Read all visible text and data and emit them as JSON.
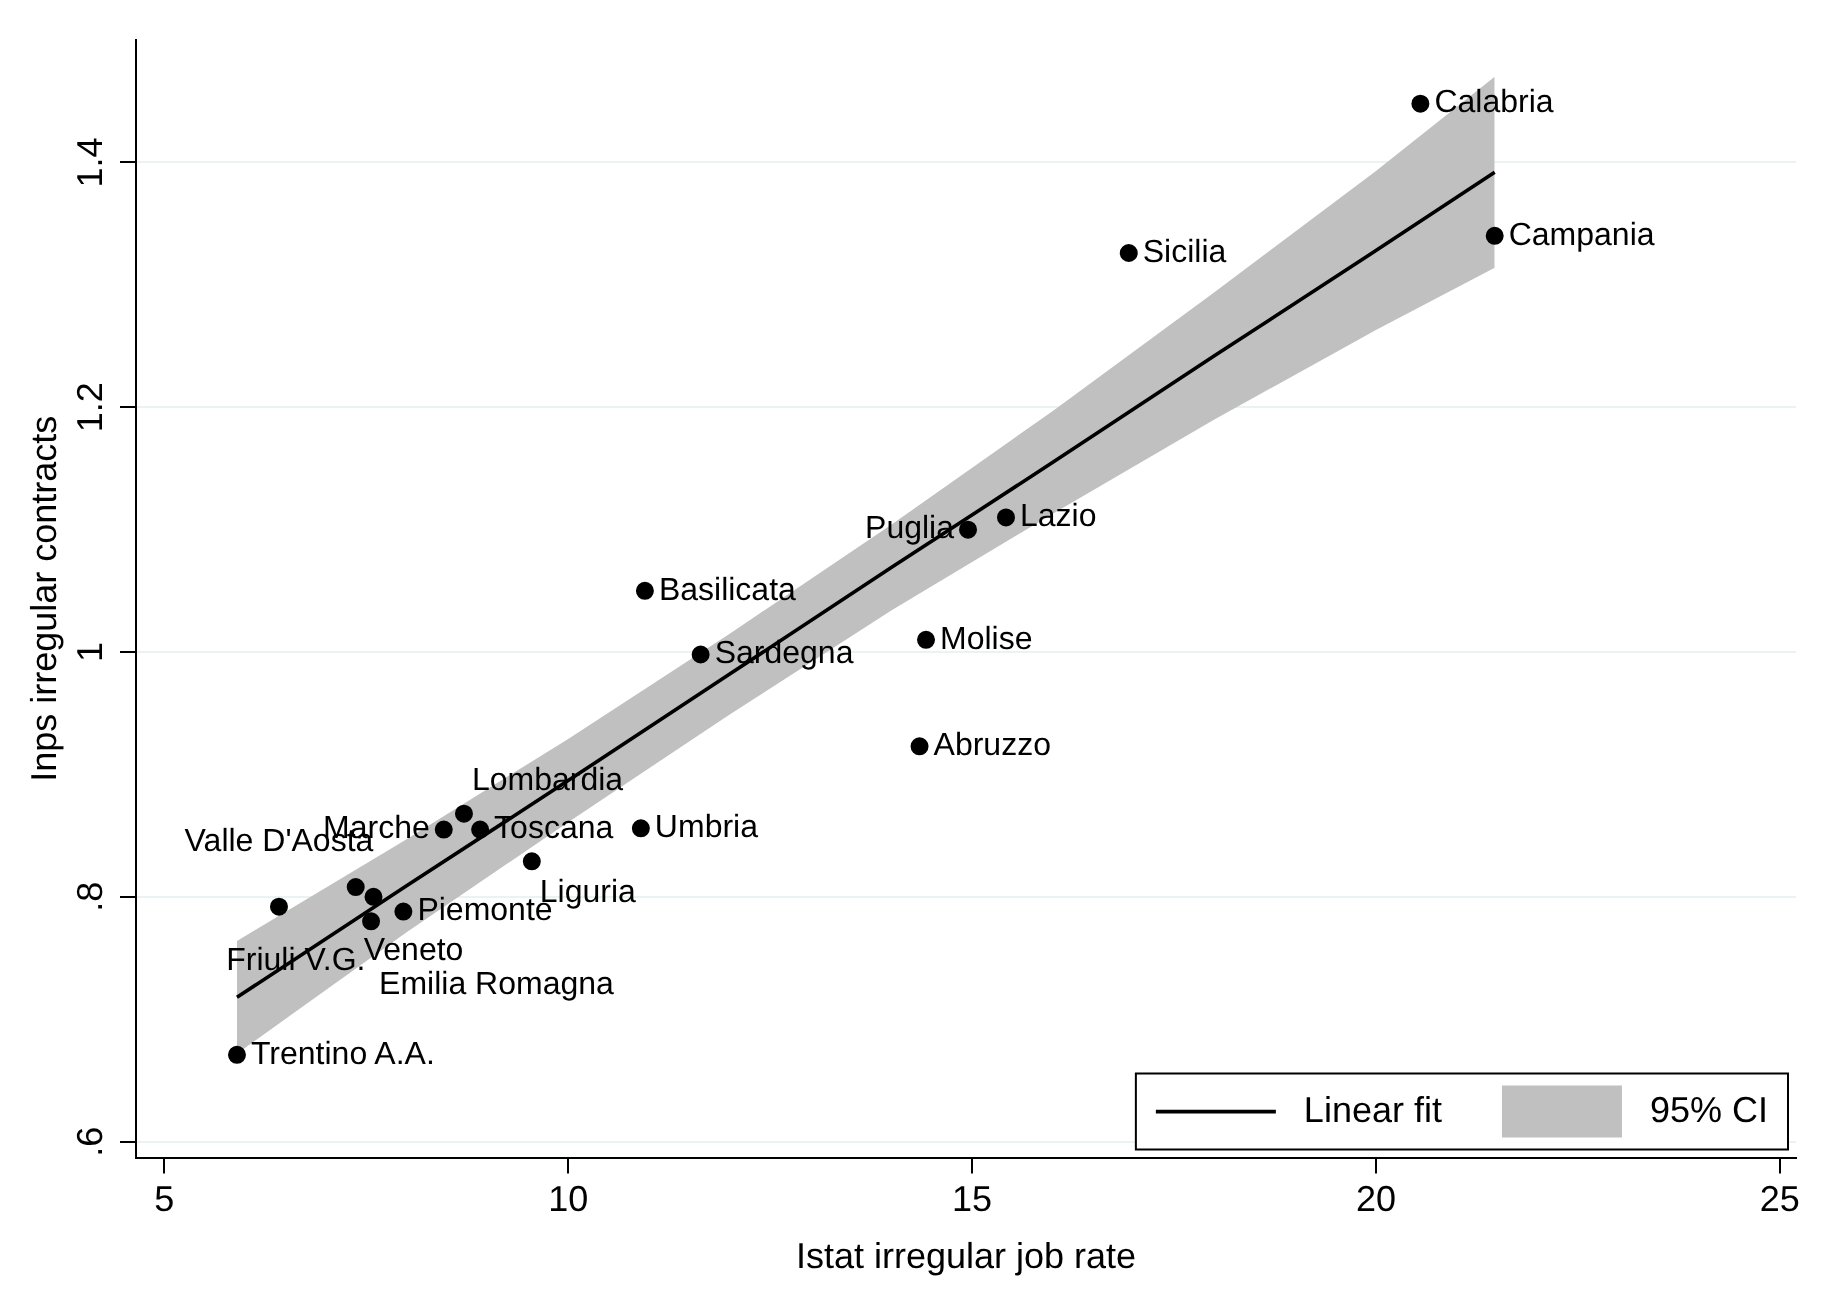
{
  "chart_data": {
    "type": "scatter",
    "xlabel": "Istat irregular job rate",
    "ylabel": "Inps irregular contracts",
    "xlim": [
      4.65,
      25.2
    ],
    "xticks": [
      5,
      10,
      15,
      20,
      25
    ],
    "ylim": [
      0.587,
      1.5
    ],
    "yticks": [
      {
        "value": 0.6,
        "label": ".6"
      },
      {
        "value": 0.8,
        "label": ".8"
      },
      {
        "value": 1,
        "label": "1"
      },
      {
        "value": 1.2,
        "label": "1.2"
      },
      {
        "value": 1.4,
        "label": "1.4"
      }
    ],
    "grid": "y",
    "legend": "bottom right",
    "series": [
      {
        "type": "line",
        "name": "Linear fit",
        "color": "#000000",
        "line_style": "solid",
        "marker": "none",
        "x": [
          5.9,
          8,
          10,
          12,
          14,
          16,
          18,
          20,
          21.47
        ],
        "values": [
          0.718,
          0.809,
          0.895,
          0.982,
          1.069,
          1.155,
          1.242,
          1.328,
          1.392
        ],
        "lower": [
          0.672,
          0.771,
          0.861,
          0.949,
          1.034,
          1.113,
          1.19,
          1.263,
          1.314
        ],
        "upper": [
          0.764,
          0.847,
          0.929,
          1.015,
          1.104,
          1.197,
          1.294,
          1.393,
          1.47
        ]
      },
      {
        "type": "area",
        "name": "95% CI",
        "color": "#c0c0c0"
      },
      {
        "type": "scatter",
        "marker": "circle",
        "color": "#000000",
        "x": [
          20.55,
          21.47,
          16.94,
          15.42,
          14.95,
          10.95,
          14.43,
          11.64,
          14.35,
          10.9,
          8.71,
          8.46,
          8.91,
          9.55,
          7.37,
          7.59,
          6.42,
          7.96,
          7.56,
          5.9
        ],
        "values": [
          1.448,
          1.34,
          1.326,
          1.11,
          1.1,
          1.05,
          1.01,
          0.998,
          0.923,
          0.856,
          0.868,
          0.855,
          0.855,
          0.829,
          0.808,
          0.8,
          0.792,
          0.788,
          0.78,
          0.671
        ]
      }
    ],
    "annotations": [
      {
        "text": "Calabria",
        "x": 20.55,
        "y": 1.448
      },
      {
        "text": "Campania",
        "x": 21.47,
        "y": 1.34
      },
      {
        "text": "Sicilia",
        "x": 16.94,
        "y": 1.326
      },
      {
        "text": "Lazio",
        "x": 15.42,
        "y": 1.11
      },
      {
        "text": "Puglia",
        "x": 14.95,
        "y": 1.1
      },
      {
        "text": "Basilicata",
        "x": 10.95,
        "y": 1.05
      },
      {
        "text": "Molise",
        "x": 14.43,
        "y": 1.01
      },
      {
        "text": "Sardegna",
        "x": 11.64,
        "y": 0.998
      },
      {
        "text": "Abruzzo",
        "x": 14.35,
        "y": 0.923
      },
      {
        "text": "Umbria",
        "x": 10.9,
        "y": 0.856
      },
      {
        "text": "Lombardia",
        "x": 8.71,
        "y": 0.868
      },
      {
        "text": "Marche",
        "x": 8.46,
        "y": 0.855
      },
      {
        "text": "Toscana",
        "x": 8.91,
        "y": 0.855
      },
      {
        "text": "Liguria",
        "x": 9.55,
        "y": 0.829
      },
      {
        "text": "Veneto",
        "x": 7.37,
        "y": 0.808
      },
      {
        "text": "Friuli V.G.",
        "x": 7.59,
        "y": 0.8
      },
      {
        "text": "Valle D'Aosta",
        "x": 6.42,
        "y": 0.792
      },
      {
        "text": "Piemonte",
        "x": 7.96,
        "y": 0.788
      },
      {
        "text": "Emilia Romagna",
        "x": 7.56,
        "y": 0.78
      },
      {
        "text": "Trentino A.A.",
        "x": 5.9,
        "y": 0.671
      }
    ]
  }
}
